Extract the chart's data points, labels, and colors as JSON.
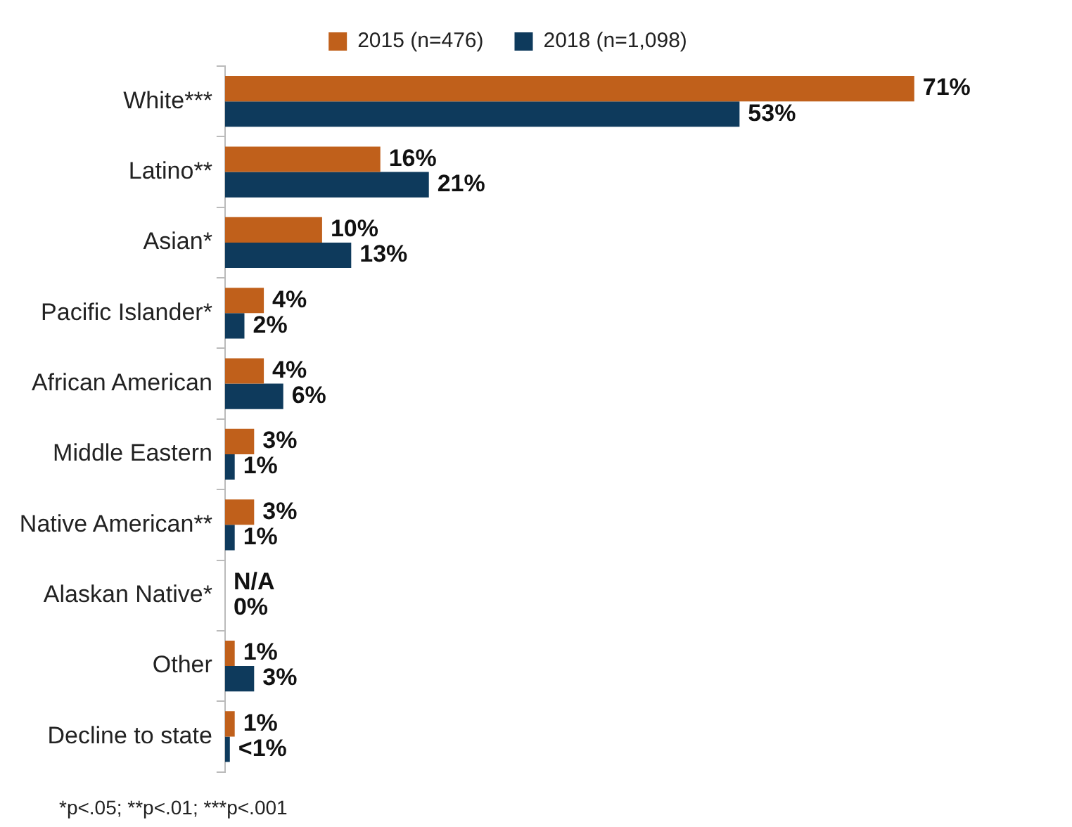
{
  "chart_data": {
    "type": "bar",
    "orientation": "horizontal",
    "legend": "top",
    "categories": [
      "White***",
      "Latino**",
      "Asian*",
      "Pacific Islander*",
      "African American",
      "Middle Eastern",
      "Native American**",
      "Alaskan Native*",
      "Other",
      "Decline to state"
    ],
    "series": [
      {
        "name": "2015 (n=476)",
        "color": "#c0601b",
        "values": [
          71,
          16,
          10,
          4,
          4,
          3,
          3,
          null,
          1,
          1
        ],
        "value_labels": [
          "71%",
          "16%",
          "10%",
          "4%",
          "4%",
          "3%",
          "3%",
          "N/A",
          "1%",
          "1%"
        ]
      },
      {
        "name": "2018 (n=1,098)",
        "color": "#0e3a5c",
        "values": [
          53,
          21,
          13,
          2,
          6,
          1,
          1,
          0,
          3,
          0.5
        ],
        "value_labels": [
          "53%",
          "21%",
          "13%",
          "2%",
          "6%",
          "1%",
          "1%",
          "0%",
          "3%",
          "<1%"
        ]
      }
    ],
    "annotations": [
      "*p<.05; **p<.01; ***p<.001"
    ]
  }
}
